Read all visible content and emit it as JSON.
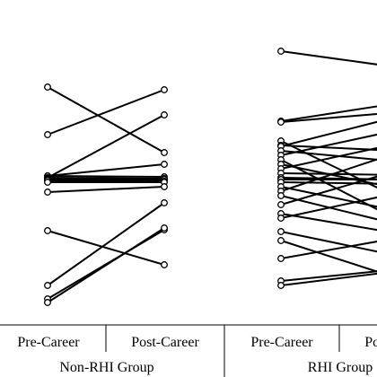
{
  "chart_data": {
    "type": "line",
    "title": "",
    "ylabel": "",
    "x_labels": [
      "Pre-Career",
      "Post-Career"
    ],
    "groups": [
      {
        "label": "Non-RHI Group",
        "pairs": [
          [
            97,
            170
          ],
          [
            150,
            100
          ],
          [
            196,
            183
          ],
          [
            196,
            197
          ],
          [
            198,
            128
          ],
          [
            198,
            199
          ],
          [
            199,
            199
          ],
          [
            200,
            200
          ],
          [
            200,
            200
          ],
          [
            201,
            202
          ],
          [
            203,
            203
          ],
          [
            214,
            208
          ],
          [
            257,
            295
          ],
          [
            318,
            226
          ],
          [
            333,
            256
          ],
          [
            337,
            254
          ]
        ]
      },
      {
        "label": "RHI Group",
        "pairs": [
          [
            57,
            75
          ],
          [
            135,
            115
          ],
          [
            136,
            125
          ],
          [
            157,
            220
          ],
          [
            162,
            168
          ],
          [
            163,
            130
          ],
          [
            168,
            180
          ],
          [
            173,
            145
          ],
          [
            178,
            245
          ],
          [
            183,
            210
          ],
          [
            188,
            160
          ],
          [
            193,
            195
          ],
          [
            198,
            200
          ],
          [
            200,
            200
          ],
          [
            203,
            205
          ],
          [
            208,
            235
          ],
          [
            213,
            170
          ],
          [
            218,
            250
          ],
          [
            228,
            190
          ],
          [
            238,
            260
          ],
          [
            243,
            215
          ],
          [
            258,
            285
          ],
          [
            268,
            310
          ],
          [
            288,
            265
          ],
          [
            313,
            300
          ],
          [
            318,
            302
          ]
        ]
      }
    ]
  }
}
